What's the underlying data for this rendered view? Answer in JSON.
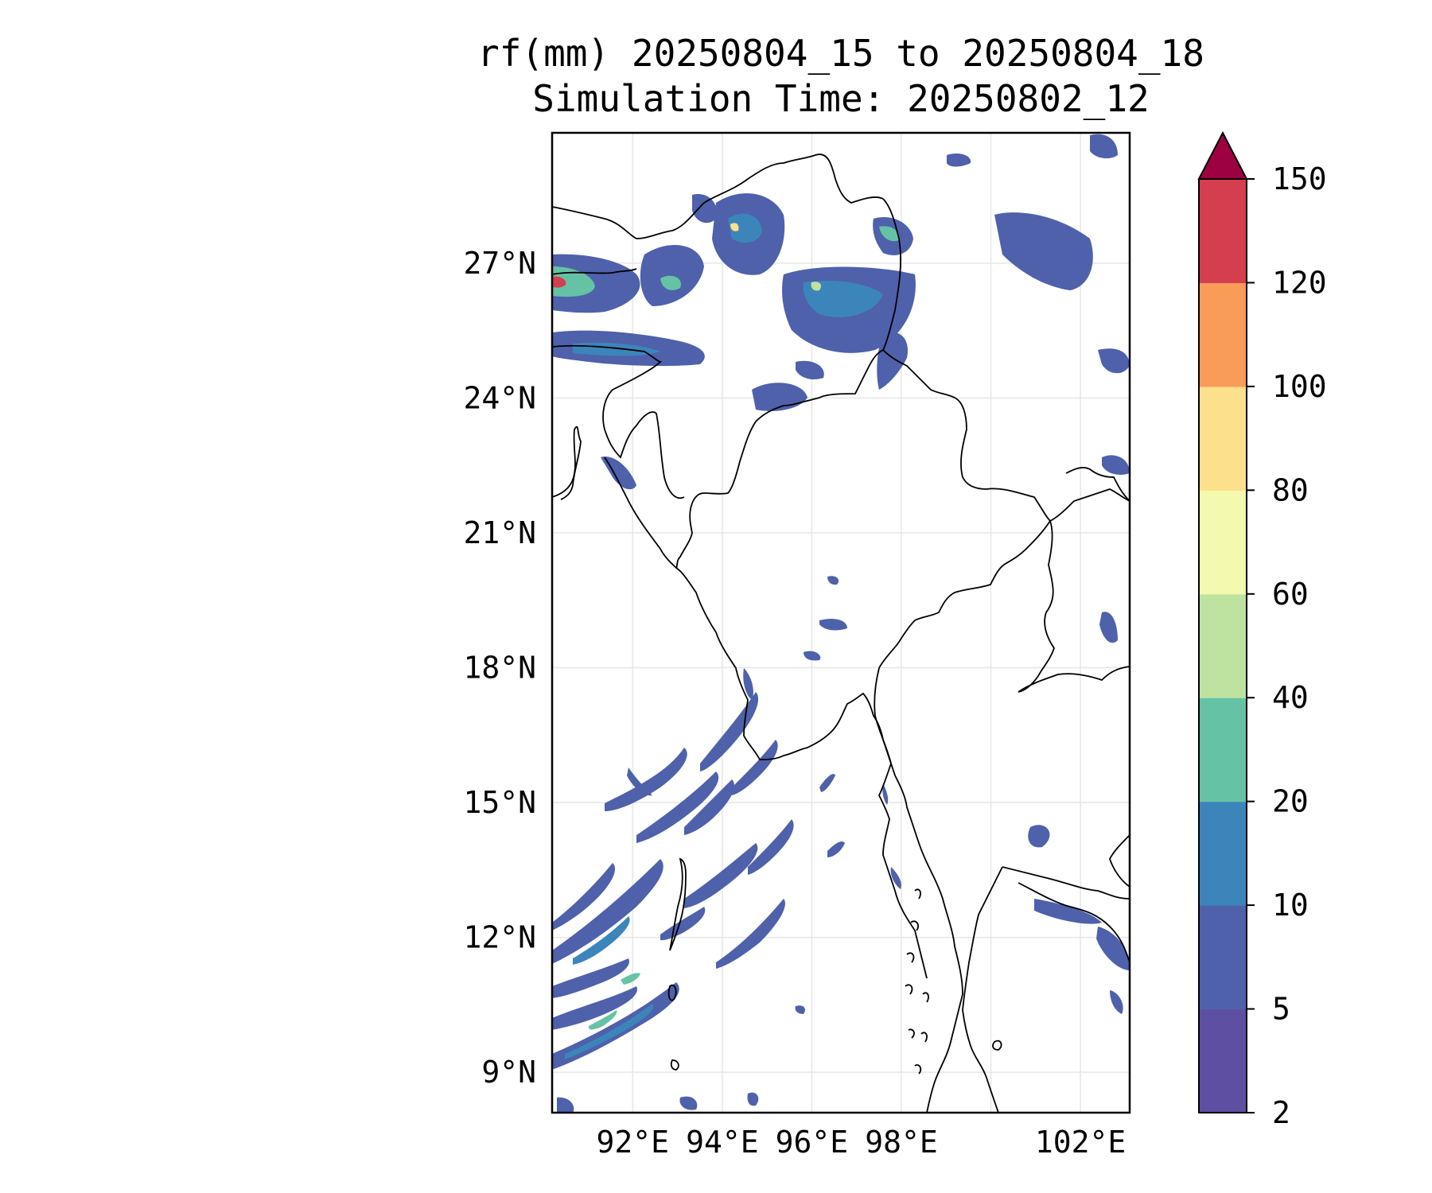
{
  "title": {
    "line1": "rf(mm) 20250804_15 to 20250804_18",
    "line2": "Simulation Time: 20250802_12"
  },
  "map": {
    "lon_range": [
      90.2,
      103.1
    ],
    "lat_range": [
      8.1,
      29.9
    ],
    "lon_ticks": [
      {
        "value": 92,
        "label": "92°E"
      },
      {
        "value": 94,
        "label": "94°E"
      },
      {
        "value": 96,
        "label": "96°E"
      },
      {
        "value": 98,
        "label": "98°E"
      },
      {
        "value": 102,
        "label": "102°E"
      }
    ],
    "lat_ticks": [
      {
        "value": 27,
        "label": "27°N"
      },
      {
        "value": 24,
        "label": "24°N"
      },
      {
        "value": 21,
        "label": "21°N"
      },
      {
        "value": 18,
        "label": "18°N"
      },
      {
        "value": 15,
        "label": "15°N"
      },
      {
        "value": 12,
        "label": "12°N"
      },
      {
        "value": 9,
        "label": "9°N"
      }
    ],
    "gridlines": true
  },
  "colorbar": {
    "levels": [
      {
        "label": "2",
        "color": "#5e4fa2"
      },
      {
        "label": "5",
        "color": "#4f61ab"
      },
      {
        "label": "10",
        "color": "#3c85bb"
      },
      {
        "label": "20",
        "color": "#66c2a5"
      },
      {
        "label": "40",
        "color": "#bee3a1"
      },
      {
        "label": "60",
        "color": "#f3f9ae"
      },
      {
        "label": "80",
        "color": "#fde08b"
      },
      {
        "label": "100",
        "color": "#f99c58"
      },
      {
        "label": "120",
        "color": "#d53e4f"
      },
      {
        "label": "150",
        "color": "#9e0142"
      }
    ],
    "extend": "max"
  },
  "colors": {
    "frame": "#000000",
    "grid": "#e6e6e6",
    "border": "#000000"
  }
}
